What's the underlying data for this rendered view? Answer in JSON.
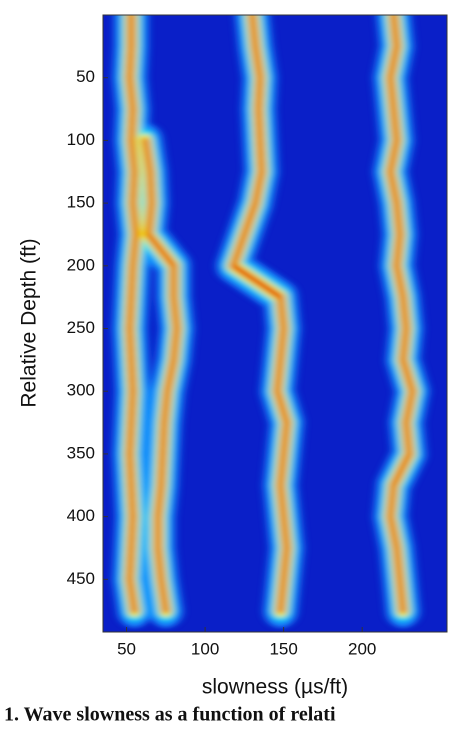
{
  "chart_data": {
    "type": "heatmap",
    "xlabel": "slowness (µs/ft)",
    "ylabel": "Relative Depth (ft)",
    "caption": "1. Wave slowness as a function of relati",
    "xlim": [
      35,
      254
    ],
    "ylim": [
      0,
      492
    ],
    "xticks": [
      50,
      100,
      150,
      200
    ],
    "yticks": [
      50,
      100,
      150,
      200,
      250,
      300,
      350,
      400,
      450
    ],
    "y": [
      0,
      25,
      50,
      75,
      100,
      125,
      150,
      175,
      200,
      225,
      250,
      275,
      300,
      325,
      350,
      375,
      400,
      425,
      450,
      475
    ],
    "series": [
      {
        "values": [
          53,
          53,
          52,
          54,
          53,
          55,
          54,
          56,
          54,
          53,
          52,
          53,
          54,
          53,
          52,
          53,
          54,
          53,
          52,
          55
        ]
      },
      {
        "values": [
          null,
          null,
          null,
          null,
          62,
          65,
          66,
          64,
          80,
          80,
          82,
          80,
          76,
          74,
          73,
          72,
          70,
          70,
          72,
          75
        ]
      },
      {
        "values": [
          130,
          132,
          135,
          134,
          135,
          136,
          132,
          125,
          118,
          148,
          150,
          148,
          146,
          152,
          150,
          148,
          150,
          152,
          150,
          148
        ]
      },
      {
        "values": [
          220,
          222,
          218,
          220,
          222,
          218,
          222,
          224,
          222,
          226,
          228,
          226,
          232,
          228,
          230,
          220,
          218,
          222,
          224,
          226
        ]
      }
    ]
  }
}
